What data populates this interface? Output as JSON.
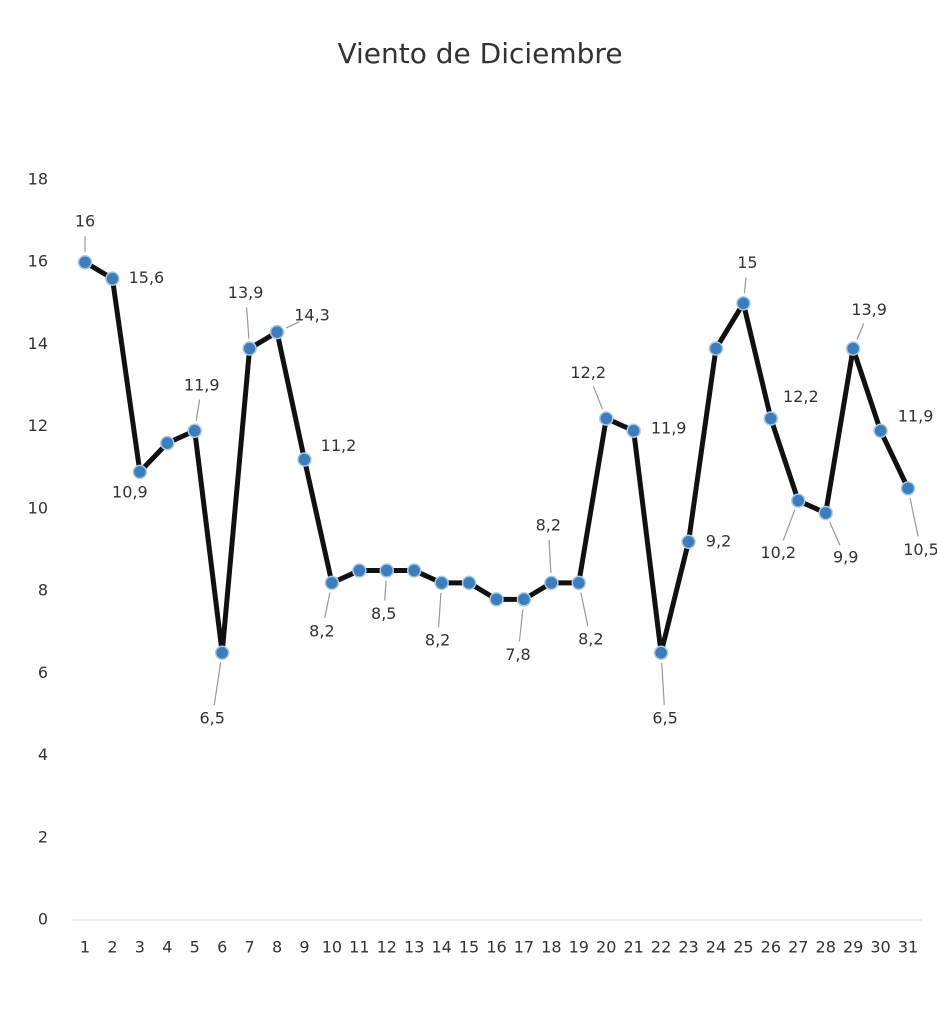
{
  "chart_data": {
    "type": "line",
    "title": "Viento de Diciembre",
    "categories": [
      1,
      2,
      3,
      4,
      5,
      6,
      7,
      8,
      9,
      10,
      11,
      12,
      13,
      14,
      15,
      16,
      17,
      18,
      19,
      20,
      21,
      22,
      23,
      24,
      25,
      26,
      27,
      28,
      29,
      30,
      31
    ],
    "series": [
      {
        "color": "#111111",
        "marker_color": "#3b7dbd",
        "values": [
          16,
          15.6,
          10.9,
          11.6,
          11.9,
          6.5,
          13.9,
          14.3,
          11.2,
          8.2,
          8.5,
          8.5,
          8.5,
          8.2,
          8.2,
          7.8,
          7.8,
          8.2,
          8.2,
          12.2,
          11.9,
          6.5,
          9.2,
          13.9,
          15,
          12.2,
          10.2,
          9.9,
          13.9,
          11.9,
          10.5
        ],
        "value_labels": [
          "16",
          "15,6",
          "10,9",
          null,
          "11,9",
          "6,5",
          "13,9",
          "14,3",
          "11,2",
          "8,2",
          null,
          "8,5",
          null,
          "8,2",
          null,
          null,
          "7,8",
          "8,2",
          "8,2",
          "12,2",
          "11,9",
          "6,5",
          "9,2",
          null,
          "15",
          "12,2",
          "10,2",
          "9,9",
          "13,9",
          "11,9",
          "10,5"
        ]
      }
    ],
    "ylim": [
      0,
      18
    ],
    "yticks": [
      0,
      2,
      4,
      6,
      8,
      10,
      12,
      14,
      16,
      18
    ],
    "grid": false
  }
}
